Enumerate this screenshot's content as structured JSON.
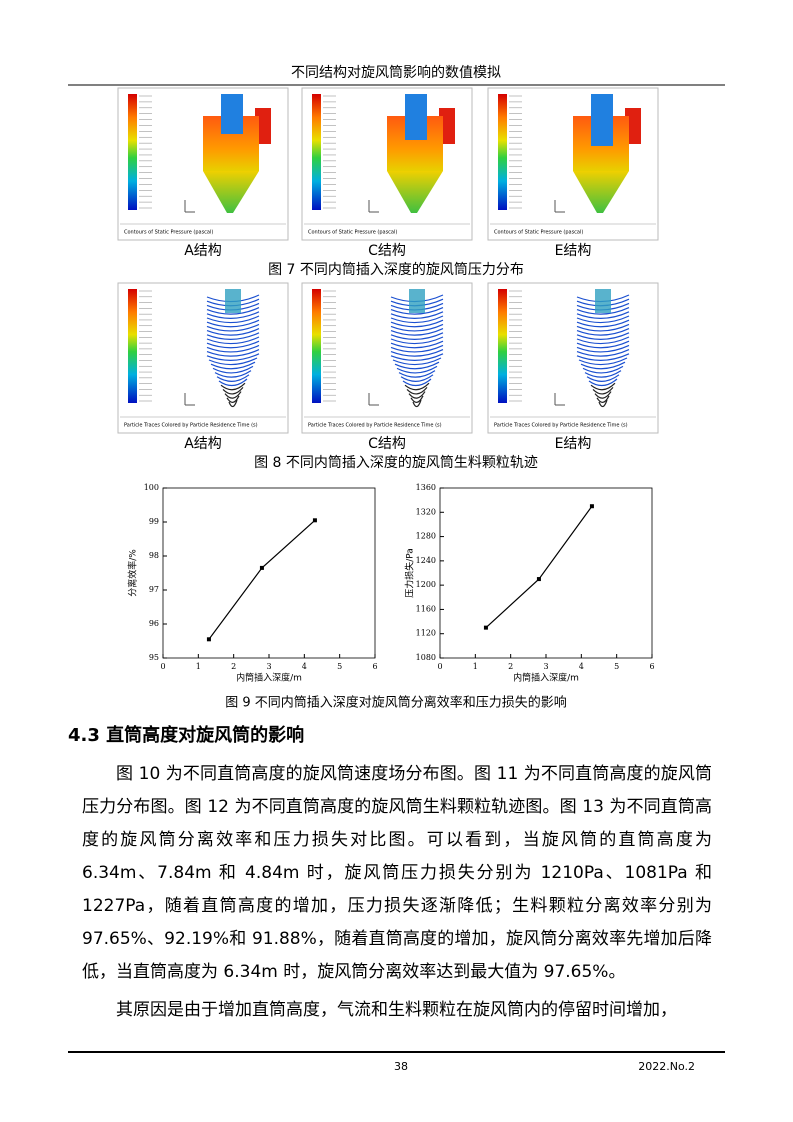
{
  "header": {
    "title": "不同结构对旋风筒影响的数值模拟"
  },
  "figure7": {
    "panels": [
      {
        "label": "A结构",
        "caption": "Contours of Static Pressure (pascal)"
      },
      {
        "label": "C结构",
        "caption": "Contours of Static Pressure (pascal)"
      },
      {
        "label": "E结构",
        "caption": "Contours of Static Pressure (pascal)"
      }
    ],
    "title": "图 7  不同内筒插入深度的旋风筒压力分布"
  },
  "figure8": {
    "panels": [
      {
        "label": "A结构",
        "caption": "Particle Traces Colored by Particle Residence Time (s)"
      },
      {
        "label": "C结构",
        "caption": "Particle Traces Colored by Particle Residence Time (s)"
      },
      {
        "label": "E结构",
        "caption": "Particle Traces Colored by Particle Residence Time (s)"
      }
    ],
    "title": "图 8  不同内筒插入深度的旋风筒生料颗粒轨迹"
  },
  "figure9": {
    "title": "图 9  不同内筒插入深度对旋风筒分离效率和压力损失的影响",
    "charts": [
      {
        "type": "line",
        "xlabel": "内筒插入深度/m",
        "ylabel": "分离效率/%",
        "x": [
          1.3,
          2.8,
          4.3
        ],
        "series": [
          {
            "color": "#000000",
            "values": [
              95.55,
              97.65,
              99.05
            ]
          }
        ],
        "xlim": [
          0,
          6
        ],
        "xticks": [
          0,
          1,
          2,
          3,
          4,
          5,
          6
        ],
        "ylim": [
          95,
          100
        ],
        "yticks": [
          95,
          96,
          97,
          98,
          99,
          100
        ]
      },
      {
        "type": "line",
        "xlabel": "内筒插入深度/m",
        "ylabel": "压力损失/Pa",
        "x": [
          1.3,
          2.8,
          4.3
        ],
        "series": [
          {
            "color": "#000000",
            "values": [
              1130,
              1210,
              1330
            ]
          }
        ],
        "xlim": [
          0,
          6
        ],
        "xticks": [
          0,
          1,
          2,
          3,
          4,
          5,
          6
        ],
        "ylim": [
          1080,
          1360
        ],
        "yticks": [
          1080,
          1120,
          1160,
          1200,
          1240,
          1280,
          1320,
          1360
        ]
      }
    ]
  },
  "section": {
    "title": "4.3  直筒高度对旋风筒的影响",
    "paragraphs": [
      "图 10 为不同直筒高度的旋风筒速度场分布图。图 11 为不同直筒高度的旋风筒压力分布图。图 12 为不同直筒高度的旋风筒生料颗粒轨迹图。图 13 为不同直筒高度的旋风筒分离效率和压力损失对比图。可以看到，当旋风筒的直筒高度为6.34m、7.84m 和 4.84m 时，旋风筒压力损失分别为 1210Pa、1081Pa 和 1227Pa，随着直筒高度的增加，压力损失逐渐降低；生料颗粒分离效率分别为 97.65%、92.19%和 91.88%，随着直筒高度的增加，旋风筒分离效率先增加后降低，当直筒高度为 6.34m 时，旋风筒分离效率达到最大值为 97.65%。",
      "其原因是由于增加直筒高度，气流和生料颗粒在旋风筒内的停留时间增加，"
    ]
  },
  "footer": {
    "page": "38",
    "issue": "2022.No.2"
  }
}
